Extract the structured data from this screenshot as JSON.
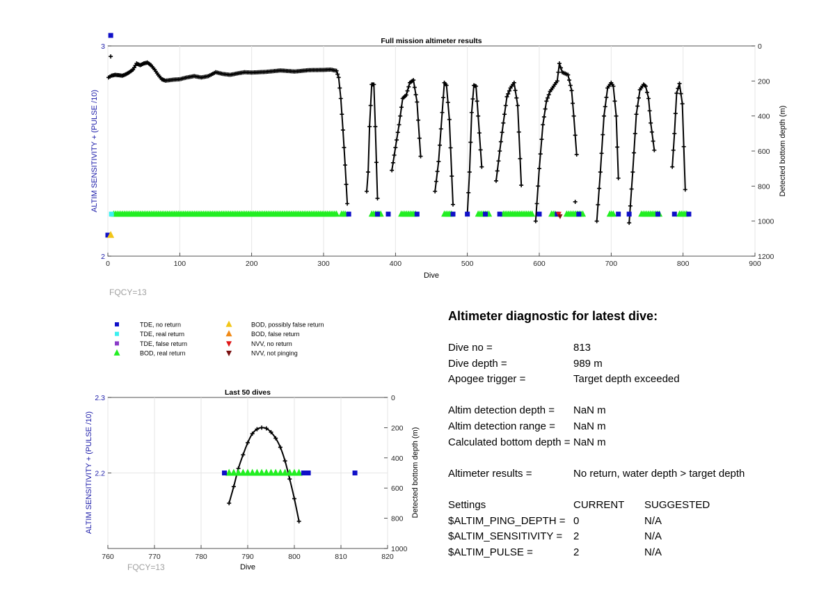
{
  "colors": {
    "tde_no_return": "#1010c8",
    "tde_real_return": "#3cf0f0",
    "tde_false_return": "#8a3cc8",
    "bod_real_return": "#22ee22",
    "bod_possibly_false": "#f2c618",
    "bod_false_return": "#f08a18",
    "nvv_no_return": "#e01818",
    "nvv_not_pinging": "#7a1010",
    "left_axis": "#1a1aa8",
    "fqcy_text": "#a0a0a0"
  },
  "chart_data": [
    {
      "id": "full_mission",
      "type": "scatter",
      "title": "Full mission altimeter results",
      "xlabel": "Dive",
      "ylabel_left": "ALTIM SENSITIVITY + (PULSE /10)",
      "ylabel_right": "Detected bottom depth (m)",
      "xlim": [
        0,
        900
      ],
      "ylim_left": [
        2,
        3
      ],
      "ylim_right": [
        1200,
        0
      ],
      "xticks": [
        "0",
        "100",
        "200",
        "300",
        "400",
        "500",
        "600",
        "700",
        "800",
        "900"
      ],
      "yticks_left": [
        "2",
        "3"
      ],
      "yticks_right": [
        "0",
        "200",
        "400",
        "600",
        "800",
        "1000",
        "1200"
      ],
      "grid": true,
      "annotation": "FQCY=13",
      "series": [
        {
          "name": "Detected bottom depth",
          "marker": "+",
          "segments": [
            [
              [
                1,
                180
              ],
              [
                5,
                170
              ],
              [
                10,
                165
              ],
              [
                15,
                167
              ],
              [
                20,
                170
              ],
              [
                25,
                162
              ],
              [
                30,
                150
              ],
              [
                35,
                135
              ],
              [
                40,
                100
              ],
              [
                45,
                110
              ],
              [
                50,
                100
              ],
              [
                55,
                95
              ],
              [
                60,
                110
              ],
              [
                65,
                135
              ],
              [
                70,
                165
              ],
              [
                75,
                190
              ],
              [
                80,
                198
              ],
              [
                90,
                193
              ],
              [
                100,
                190
              ],
              [
                110,
                180
              ],
              [
                120,
                172
              ],
              [
                130,
                180
              ],
              [
                140,
                172
              ],
              [
                150,
                150
              ],
              [
                160,
                160
              ],
              [
                170,
                165
              ],
              [
                180,
                157
              ],
              [
                190,
                150
              ],
              [
                200,
                152
              ],
              [
                220,
                148
              ],
              [
                240,
                140
              ],
              [
                260,
                146
              ],
              [
                280,
                138
              ],
              [
                300,
                137
              ],
              [
                310,
                135
              ],
              [
                318,
                142
              ],
              [
                321,
                180
              ],
              [
                324,
                300
              ],
              [
                327,
                480
              ],
              [
                330,
                680
              ],
              [
                333,
                900
              ]
            ],
            [
              [
                360,
                830
              ],
              [
                362,
                720
              ],
              [
                364,
                460
              ],
              [
                367,
                220
              ],
              [
                370,
                220
              ],
              [
                372,
                460
              ],
              [
                375,
                870
              ]
            ],
            [
              [
                395,
                710
              ],
              [
                400,
                580
              ],
              [
                405,
                450
              ],
              [
                410,
                300
              ],
              [
                415,
                280
              ],
              [
                420,
                210
              ],
              [
                425,
                195
              ],
              [
                430,
                320
              ],
              [
                435,
                630
              ]
            ],
            [
              [
                455,
                830
              ],
              [
                460,
                660
              ],
              [
                465,
                380
              ],
              [
                468,
                210
              ],
              [
                471,
                225
              ],
              [
                475,
                420
              ],
              [
                480,
                905
              ]
            ],
            [
              [
                500,
                955
              ],
              [
                503,
                720
              ],
              [
                506,
                380
              ],
              [
                509,
                225
              ],
              [
                512,
                230
              ],
              [
                515,
                400
              ],
              [
                520,
                690
              ]
            ],
            [
              [
                540,
                770
              ],
              [
                545,
                600
              ],
              [
                550,
                440
              ],
              [
                555,
                290
              ],
              [
                560,
                240
              ],
              [
                565,
                210
              ],
              [
                570,
                340
              ],
              [
                575,
                795
              ]
            ],
            [
              [
                595,
                1000
              ],
              [
                600,
                700
              ],
              [
                605,
                450
              ],
              [
                610,
                315
              ],
              [
                615,
                260
              ],
              [
                620,
                230
              ],
              [
                625,
                200
              ],
              [
                628,
                100
              ],
              [
                632,
                150
              ],
              [
                640,
                165
              ],
              [
                645,
                255
              ],
              [
                648,
                400
              ],
              [
                652,
                620
              ]
            ],
            [
              [
                680,
                1000
              ],
              [
                685,
                720
              ],
              [
                690,
                400
              ],
              [
                695,
                240
              ],
              [
                700,
                210
              ],
              [
                703,
                230
              ],
              [
                707,
                400
              ],
              [
                710,
                755
              ]
            ],
            [
              [
                725,
                1010
              ],
              [
                730,
                720
              ],
              [
                735,
                390
              ],
              [
                740,
                250
              ],
              [
                745,
                220
              ],
              [
                748,
                230
              ],
              [
                752,
                300
              ],
              [
                755,
                440
              ],
              [
                760,
                595
              ]
            ],
            [
              [
                785,
                690
              ],
              [
                788,
                500
              ],
              [
                791,
                270
              ],
              [
                795,
                215
              ],
              [
                799,
                330
              ],
              [
                803,
                820
              ]
            ]
          ],
          "isolated": [
            [
              4,
              60
            ],
            [
              650,
              890
            ]
          ]
        },
        {
          "name": "BOD, real return",
          "ranges": [
            [
              8,
              320
            ],
            [
              325,
              332
            ],
            [
              367,
              380
            ],
            [
              408,
              428
            ],
            [
              468,
              480
            ],
            [
              515,
              530
            ],
            [
              550,
              590
            ],
            [
              617,
              623
            ],
            [
              638,
              662
            ],
            [
              698,
              703
            ],
            [
              742,
              768
            ],
            [
              795,
              805
            ]
          ]
        },
        {
          "name": "TDE, no return",
          "points": [
            [
              4,
              3.05
            ],
            [
              335,
              2.2
            ],
            [
              375,
              2.2
            ],
            [
              390,
              2.2
            ],
            [
              430,
              2.2
            ],
            [
              480,
              2.2
            ],
            [
              500,
              2.2
            ],
            [
              525,
              2.2
            ],
            [
              545,
              2.2
            ],
            [
              600,
              2.2
            ],
            [
              625,
              2.2
            ],
            [
              655,
              2.2
            ],
            [
              710,
              2.2
            ],
            [
              725,
              2.2
            ],
            [
              765,
              2.2
            ],
            [
              788,
              2.2
            ],
            [
              808,
              2.2
            ],
            [
              0,
              2.1
            ]
          ]
        },
        {
          "name": "TDE, real return",
          "points": [
            [
              5,
              2.2
            ]
          ]
        },
        {
          "name": "BOD, possibly false return",
          "points": [
            [
              4,
              2.1
            ]
          ]
        },
        {
          "name": "NVV, no return",
          "points": [
            [
              627,
              2.2
            ]
          ]
        },
        {
          "name": "NVV, not pinging",
          "points": [
            [
              629,
              2.19
            ]
          ]
        }
      ]
    },
    {
      "id": "last_50",
      "type": "scatter",
      "title": "Last 50 dives",
      "xlabel": "Dive",
      "ylabel_left": "ALTIM SENSITIVITY + (PULSE /10)",
      "ylabel_right": "Detected bottom depth (m)",
      "xlim": [
        760,
        820
      ],
      "ylim_left": [
        2.1,
        2.3
      ],
      "ylim_right": [
        1000,
        0
      ],
      "xticks": [
        "760",
        "770",
        "780",
        "790",
        "800",
        "810",
        "820"
      ],
      "yticks_left": [
        "2.2",
        "2.3"
      ],
      "yticks_right": [
        "0",
        "200",
        "400",
        "600",
        "800",
        "1000"
      ],
      "grid": true,
      "annotation": "FQCY=13",
      "series": [
        {
          "name": "Detected bottom depth",
          "marker": "+",
          "points": [
            [
              786,
              700
            ],
            [
              787,
              590
            ],
            [
              788,
              470
            ],
            [
              789,
              380
            ],
            [
              790,
              300
            ],
            [
              791,
              240
            ],
            [
              792,
              210
            ],
            [
              793,
              200
            ],
            [
              794,
              205
            ],
            [
              795,
              230
            ],
            [
              796,
              270
            ],
            [
              797,
              330
            ],
            [
              798,
              420
            ],
            [
              799,
              540
            ],
            [
              800,
              670
            ],
            [
              801,
              820
            ]
          ]
        },
        {
          "name": "BOD, real return",
          "points": [
            [
              786,
              2.2
            ],
            [
              787,
              2.2
            ],
            [
              788,
              2.2
            ],
            [
              789,
              2.2
            ],
            [
              790,
              2.2
            ],
            [
              791,
              2.2
            ],
            [
              792,
              2.2
            ],
            [
              793,
              2.2
            ],
            [
              794,
              2.2
            ],
            [
              795,
              2.2
            ],
            [
              796,
              2.2
            ],
            [
              797,
              2.2
            ],
            [
              798,
              2.2
            ],
            [
              799,
              2.2
            ],
            [
              800,
              2.2
            ],
            [
              801,
              2.2
            ]
          ]
        },
        {
          "name": "TDE, no return",
          "points": [
            [
              785,
              2.2
            ],
            [
              802,
              2.2
            ],
            [
              803,
              2.2
            ],
            [
              813,
              2.2
            ]
          ]
        }
      ]
    }
  ],
  "legend": {
    "col1": [
      {
        "label": "TDE, no return",
        "marker": "square",
        "color_key": "tde_no_return"
      },
      {
        "label": "TDE, real return",
        "marker": "square",
        "color_key": "tde_real_return"
      },
      {
        "label": "TDE, false return",
        "marker": "square",
        "color_key": "tde_false_return"
      },
      {
        "label": "BOD, real return",
        "marker": "triangle-up",
        "color_key": "bod_real_return"
      }
    ],
    "col2": [
      {
        "label": "BOD, possibly false return",
        "marker": "triangle-up",
        "color_key": "bod_possibly_false"
      },
      {
        "label": "BOD, false return",
        "marker": "triangle-up",
        "color_key": "bod_false_return"
      },
      {
        "label": "NVV, no return",
        "marker": "triangle-down",
        "color_key": "nvv_no_return"
      },
      {
        "label": "NVV, not pinging",
        "marker": "triangle-down",
        "color_key": "nvv_not_pinging"
      }
    ]
  },
  "diagnostic": {
    "title": "Altimeter diagnostic for latest dive:",
    "dive_no_label": "Dive no =",
    "dive_no_value": "813",
    "dive_depth_label": "Dive depth =",
    "dive_depth_value": "989 m",
    "apogee_label": "Apogee trigger =",
    "apogee_value": "Target depth exceeded",
    "altim_det_depth_label": "Altim detection depth =",
    "altim_det_depth_value": "NaN m",
    "altim_det_range_label": "Altim detection range =",
    "altim_det_range_value": "NaN m",
    "calc_bottom_label": "Calculated bottom depth =",
    "calc_bottom_value": "NaN m",
    "results_label": "Altimeter results =",
    "results_value": "No return, water depth > target depth",
    "settings_header": "Settings",
    "current_header": "CURRENT",
    "suggested_header": "SUGGESTED",
    "ping_depth_label": "$ALTIM_PING_DEPTH =",
    "ping_depth_current": "0",
    "ping_depth_suggested": "N/A",
    "sensitivity_label": "$ALTIM_SENSITIVITY =",
    "sensitivity_current": "2",
    "sensitivity_suggested": "N/A",
    "pulse_label": "$ALTIM_PULSE =",
    "pulse_current": "2",
    "pulse_suggested": "N/A"
  }
}
